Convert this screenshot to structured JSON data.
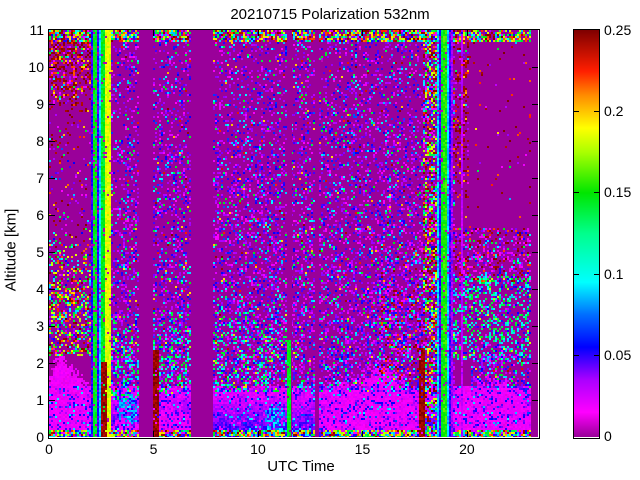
{
  "chart_data": {
    "type": "heatmap",
    "title": "20210715 Polarization 532nm",
    "xlabel": "UTC Time",
    "ylabel": "Altitude [km]",
    "xlim": [
      0,
      23.4
    ],
    "ylim": [
      0,
      11
    ],
    "xticks": [
      0,
      5,
      10,
      15,
      20
    ],
    "yticks": [
      0,
      1,
      2,
      3,
      4,
      5,
      6,
      7,
      8,
      9,
      10,
      11
    ],
    "colorbar": {
      "min": 0,
      "max": 0.25,
      "ticks": [
        "0",
        "0.05",
        "0.1",
        "0.15",
        "0.2",
        "0.25"
      ],
      "tick_values": [
        0,
        0.05,
        0.1,
        0.15,
        0.2,
        0.25
      ]
    },
    "background_hex": "#9a009a",
    "colormap": [
      [
        0.0,
        154,
        0,
        154
      ],
      [
        0.06,
        255,
        0,
        255
      ],
      [
        0.14,
        170,
        0,
        255
      ],
      [
        0.22,
        0,
        0,
        255
      ],
      [
        0.3,
        0,
        110,
        255
      ],
      [
        0.38,
        0,
        255,
        255
      ],
      [
        0.5,
        0,
        255,
        140
      ],
      [
        0.6,
        0,
        230,
        0
      ],
      [
        0.7,
        170,
        255,
        0
      ],
      [
        0.76,
        255,
        255,
        0
      ],
      [
        0.84,
        255,
        140,
        0
      ],
      [
        0.9,
        255,
        30,
        0
      ],
      [
        1.0,
        128,
        0,
        0
      ]
    ],
    "seed": 20210715,
    "blue_layer": {
      "top": 1.35,
      "v0": 0.053,
      "slope": 0.028
    },
    "plume_v": 0.017,
    "plume_base": 0.12,
    "plumes": [
      {
        "pts": [
          [
            0,
            1.7
          ],
          [
            0.35,
            2.3
          ],
          [
            0.9,
            2.1
          ],
          [
            1.5,
            1.75
          ],
          [
            2.07,
            1.35
          ]
        ]
      },
      {
        "pts": [
          [
            2.95,
            0.45
          ],
          [
            3.6,
            0.5
          ],
          [
            4.29,
            0.4
          ]
        ]
      },
      {
        "pts": [
          [
            4.98,
            0.95
          ],
          [
            5.5,
            1.05
          ],
          [
            6.1,
            0.85
          ],
          [
            6.78,
            0.55
          ]
        ]
      },
      {
        "pts": [
          [
            12.96,
            0.85
          ],
          [
            13.6,
            1.25
          ],
          [
            14.6,
            1.65
          ],
          [
            15.4,
            1.95
          ],
          [
            16.3,
            2.0
          ],
          [
            16.9,
            1.6
          ],
          [
            17.6,
            1.05
          ],
          [
            17.95,
            0.7
          ]
        ]
      },
      {
        "pts": [
          [
            19.4,
            1.1
          ],
          [
            20.1,
            1.45
          ],
          [
            20.9,
            1.65
          ],
          [
            21.9,
            1.55
          ],
          [
            22.7,
            1.25
          ],
          [
            23.05,
            1.05
          ]
        ]
      }
    ],
    "cyan_blobs": [
      {
        "t": [
          3.3,
          4.2
        ],
        "a": [
          0.25,
          1.2
        ],
        "v": 0.085,
        "d": 0.75
      },
      {
        "t": [
          10.3,
          11.35
        ],
        "a": [
          0.05,
          0.9
        ],
        "v": 0.085,
        "d": 0.6
      },
      {
        "t": [
          20.3,
          21.3
        ],
        "a": [
          0.15,
          0.8
        ],
        "v": 0.08,
        "d": 0.45
      }
    ],
    "palettes": {
      "cool": [
        [
          0.035,
          30
        ],
        [
          0.05,
          22
        ],
        [
          0.018,
          16
        ],
        [
          0.09,
          12
        ],
        [
          0.14,
          7
        ],
        [
          0.065,
          6
        ],
        [
          0.0,
          3
        ],
        [
          0.2,
          2
        ],
        [
          0.23,
          1
        ],
        [
          0.245,
          1
        ]
      ],
      "bluemix": [
        [
          0.05,
          35
        ],
        [
          0.035,
          25
        ],
        [
          0.018,
          20
        ],
        [
          0.09,
          12
        ],
        [
          0.065,
          8
        ]
      ],
      "maroon": [
        [
          0.245,
          55
        ],
        [
          0.22,
          15
        ],
        [
          0.018,
          10
        ],
        [
          0.035,
          8
        ],
        [
          0.2,
          5
        ],
        [
          0.14,
          4
        ],
        [
          0.09,
          3
        ]
      ],
      "rainbow": [
        [
          0.14,
          20
        ],
        [
          0.18,
          16
        ],
        [
          0.09,
          15
        ],
        [
          0.22,
          12
        ],
        [
          0.245,
          12
        ],
        [
          0.05,
          9
        ],
        [
          0.2,
          8
        ],
        [
          0.035,
          5
        ],
        [
          0.018,
          3
        ]
      ],
      "greens": [
        [
          0.14,
          28
        ],
        [
          0.09,
          24
        ],
        [
          0.11,
          15
        ],
        [
          0.05,
          14
        ],
        [
          0.035,
          10
        ],
        [
          0.18,
          5
        ],
        [
          0.018,
          4
        ]
      ],
      "warm": [
        [
          0.018,
          28
        ],
        [
          0.035,
          18
        ],
        [
          0.245,
          20
        ],
        [
          0.05,
          10
        ],
        [
          0.09,
          10
        ],
        [
          0.22,
          9
        ],
        [
          0.14,
          5
        ]
      ],
      "densewarm": [
        [
          0.245,
          24
        ],
        [
          0.18,
          20
        ],
        [
          0.14,
          14
        ],
        [
          0.22,
          12
        ],
        [
          0.09,
          10
        ],
        [
          0.05,
          8
        ],
        [
          0.018,
          12
        ]
      ]
    },
    "noise_regions": [
      {
        "t": [
          0,
          23.05
        ],
        "a": [
          0,
          1.35
        ],
        "pal": "bluemix",
        "d": 0.3
      },
      {
        "t": [
          0,
          2.07
        ],
        "a": [
          2.2,
          8.6
        ],
        "pal": "cool",
        "d": 0.05
      },
      {
        "t": [
          0,
          2.07
        ],
        "a": [
          5.6,
          8.5
        ],
        "pal": "maroon",
        "d": 0.05
      },
      {
        "t": [
          0,
          2.07
        ],
        "a": [
          8.5,
          11
        ],
        "pal": "maroon",
        "d": 0.55,
        "fade": "down",
        "band": 1.3
      },
      {
        "t": [
          0,
          2.07
        ],
        "a": [
          2.2,
          5.7
        ],
        "pal": "rainbow",
        "d": 0.5,
        "fade": "up",
        "band": 1.8
      },
      {
        "t": [
          2.95,
          4.29
        ],
        "a": [
          1.25,
          11
        ],
        "pal": "cool",
        "dgrad": [
          0.42,
          0.18
        ]
      },
      {
        "t": [
          2.95,
          4.29
        ],
        "a": [
          1.0,
          3.3
        ],
        "pal": "greens",
        "d": 0.3,
        "fade": "up",
        "band": 1.2
      },
      {
        "t": [
          4.98,
          6.78
        ],
        "a": [
          1.25,
          11
        ],
        "pal": "cool",
        "dgrad": [
          0.42,
          0.18
        ]
      },
      {
        "t": [
          4.98,
          6.78
        ],
        "a": [
          1.2,
          3.6
        ],
        "pal": "greens",
        "d": 0.3,
        "fade": "up",
        "band": 1.3
      },
      {
        "t": [
          7.83,
          19.35
        ],
        "a": [
          1.25,
          11
        ],
        "pal": "cool",
        "dgrad": [
          0.46,
          0.2
        ]
      },
      {
        "t": [
          7.83,
          11.38
        ],
        "a": [
          1.25,
          4.0
        ],
        "pal": "greens",
        "d": 0.25,
        "fade": "up",
        "band": 1.5
      },
      {
        "t": [
          15.8,
          17.95
        ],
        "a": [
          1.5,
          5.8
        ],
        "pal": "warm",
        "d": 0.28,
        "fade": "up",
        "band": 2.0
      },
      {
        "t": [
          17.95,
          18.6
        ],
        "a": [
          0,
          11
        ],
        "pal": "densewarm",
        "d": 0.5
      },
      {
        "t": [
          19.35,
          23.05
        ],
        "a": [
          5.5,
          11
        ],
        "pal": "maroon",
        "d": 0.025
      },
      {
        "t": [
          19.35,
          20.05
        ],
        "a": [
          6.0,
          11
        ],
        "pal": "maroon",
        "d": 0.3,
        "fade": "down",
        "band": 1.5
      },
      {
        "t": [
          19.35,
          23.05
        ],
        "a": [
          4.2,
          5.6
        ],
        "pal": "warm",
        "d": 0.38
      },
      {
        "t": [
          19.35,
          23.05
        ],
        "a": [
          2.1,
          4.3
        ],
        "pal": "greens",
        "d": 0.42
      },
      {
        "t": [
          20.2,
          23.05
        ],
        "a": [
          1.35,
          2.2
        ],
        "pal": "cool",
        "d": 0.4
      },
      {
        "t": [
          0,
          23.05
        ],
        "a": [
          10.72,
          11
        ],
        "pal": "rainbow",
        "d": 0.75
      },
      {
        "t": [
          0,
          23.05
        ],
        "a": [
          0,
          0.14
        ],
        "pal": "rainbow",
        "d": 0.8
      }
    ],
    "stripes": [
      [
        2.07,
        2.17,
        0.05
      ],
      [
        2.17,
        2.36,
        0.145
      ],
      [
        2.36,
        2.45,
        0.05
      ],
      [
        2.45,
        2.55,
        0.09
      ],
      [
        2.55,
        2.72,
        0.145
      ],
      [
        2.72,
        2.79,
        0.185
      ],
      [
        2.79,
        2.87,
        0.09
      ],
      [
        2.87,
        2.95,
        0.185
      ],
      [
        18.6,
        18.68,
        0.09
      ],
      [
        18.68,
        18.76,
        0.05
      ],
      [
        18.76,
        18.86,
        0.145
      ],
      [
        18.86,
        19.08,
        0.155
      ],
      [
        19.08,
        19.16,
        0.09
      ],
      [
        19.16,
        19.26,
        0.05
      ],
      [
        19.26,
        19.33,
        0.035
      ]
    ],
    "gaps": [
      [
        4.29,
        4.98
      ],
      [
        6.78,
        7.83
      ],
      [
        11.38,
        11.62
      ],
      [
        12.75,
        12.96
      ],
      [
        23.05,
        23.4
      ]
    ],
    "lines": [
      {
        "t": [
          2.5,
          2.72
        ],
        "a": [
          0,
          2.0
        ],
        "v": 0.245
      },
      {
        "t": [
          5.0,
          5.25
        ],
        "a": [
          0,
          2.35
        ],
        "v": 0.245
      },
      {
        "t": [
          11.43,
          11.56
        ],
        "a": [
          0,
          2.6
        ],
        "v": 0.145
      },
      {
        "t": [
          17.8,
          17.95
        ],
        "a": [
          0,
          2.4
        ],
        "v": 0.245
      },
      {
        "t": [
          19.72,
          19.8
        ],
        "a": [
          0,
          11
        ],
        "v": 0.03
      }
    ]
  }
}
